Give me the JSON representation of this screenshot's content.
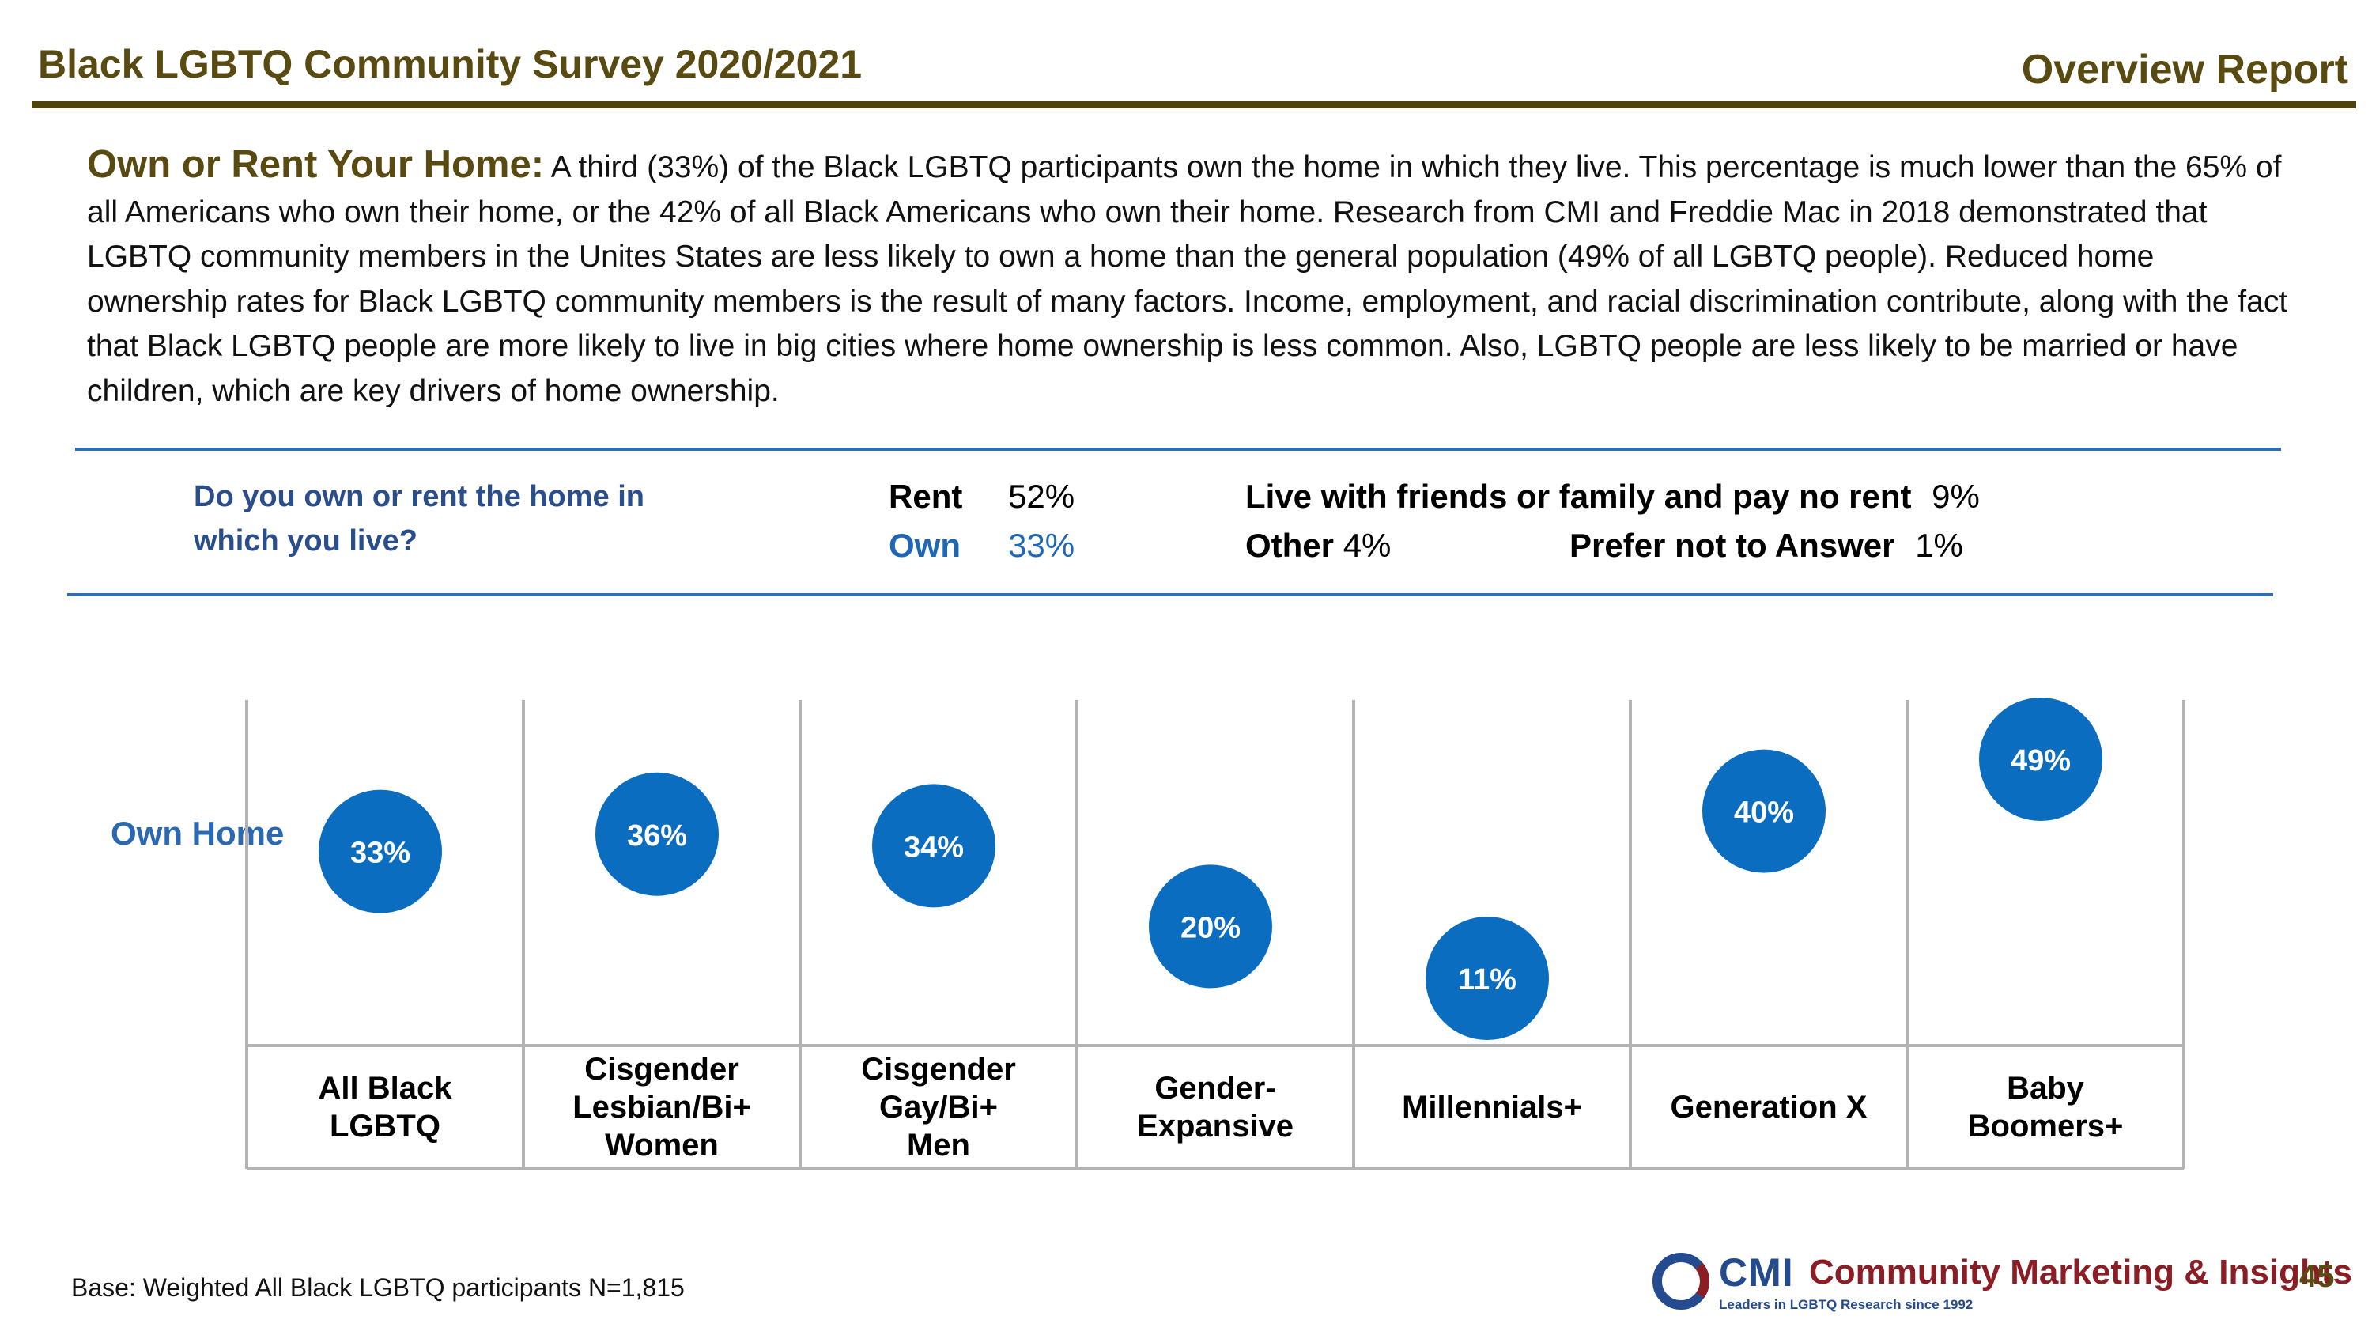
{
  "header": {
    "title": "Black LGBTQ Community Survey 2020/2021",
    "report": "Overview Report"
  },
  "intro": {
    "lead": "Own or Rent Your Home:",
    "text": "A third (33%) of the Black LGBTQ participants own the home in which they live. This percentage is much lower than the 65% of all Americans who own their home, or the 42% of all Black Americans who own their home. Research from CMI and Freddie Mac in 2018 demonstrated that LGBTQ community members in the Unites States are less likely to own a home than the general population (49% of all LGBTQ people).  Reduced home ownership rates for Black LGBTQ community members is the result of many factors. Income, employment, and racial discrimination contribute, along with the fact that Black LGBTQ people are more likely to live in big cities where home ownership is less common. Also, LGBTQ people are less likely to be married or have children, which are key drivers of home ownership."
  },
  "question": {
    "text": "Do you own or rent the home in which you live?",
    "responses": {
      "rent_label": "Rent",
      "rent_value": "52%",
      "own_label": "Own",
      "own_value": "33%",
      "friends_label": "Live with friends or family and pay no rent",
      "friends_value": "9%",
      "other_label": "Other",
      "other_value": "4%",
      "prefer_label": "Prefer not to Answer",
      "prefer_value": "1%"
    }
  },
  "chart_data": {
    "type": "scatter",
    "ylabel": "Own Home",
    "categories": [
      "All Black LGBTQ",
      "Cisgender Lesbian/Bi+ Women",
      "Cisgender Gay/Bi+ Men",
      "Gender-Expansive",
      "Millennials+",
      "Generation X",
      "Baby Boomers+"
    ],
    "series": [
      {
        "values": [
          33,
          36,
          34,
          20,
          11,
          40,
          49
        ]
      }
    ],
    "data_labels": [
      "33%",
      "36%",
      "34%",
      "20%",
      "11%",
      "40%",
      "49%"
    ],
    "grid": true,
    "colors": {
      "bubble": "#0a6dbf",
      "grid": "#b3b3b3"
    }
  },
  "footer": {
    "base": "Base: Weighted All Black LGBTQ participants  N=1,815",
    "logo_cmi": "CMI",
    "logo_name": "Community Marketing & Insights",
    "logo_tagline": "Leaders in LGBTQ Research since 1992",
    "page": "45"
  }
}
